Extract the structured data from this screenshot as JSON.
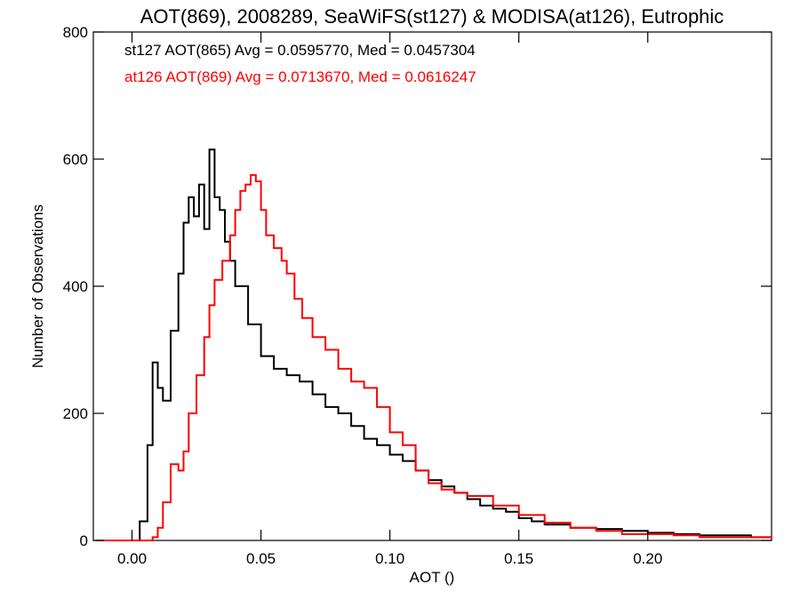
{
  "chart_data": {
    "type": "line",
    "title": "AOT(869), 2008289, SeaWiFS(st127) & MODISA(at126), Eutrophic",
    "xlabel": "AOT ()",
    "ylabel": "Number of Observations",
    "xlim": [
      -0.015,
      0.248
    ],
    "ylim": [
      0,
      800
    ],
    "x_ticks": [
      0.0,
      0.05,
      0.1,
      0.15,
      0.2
    ],
    "x_tick_labels": [
      "0.00",
      "0.05",
      "0.10",
      "0.15",
      "0.20"
    ],
    "y_ticks": [
      0,
      200,
      400,
      600,
      800
    ],
    "y_tick_labels": [
      "0",
      "200",
      "400",
      "600",
      "800"
    ],
    "grid": false,
    "step": true,
    "annotations": [
      {
        "text": "st127 AOT(865) Avg = 0.0595770, Med = 0.0457304",
        "color": "#000000"
      },
      {
        "text": "at126 AOT(869) Avg = 0.0713670, Med = 0.0616247",
        "color": "#ff0000"
      }
    ],
    "series": [
      {
        "color": "#000000",
        "x": [
          -0.014,
          0.0,
          0.003,
          0.006,
          0.008,
          0.01,
          0.012,
          0.015,
          0.018,
          0.02,
          0.022,
          0.024,
          0.026,
          0.028,
          0.03,
          0.032,
          0.034,
          0.036,
          0.038,
          0.04,
          0.045,
          0.05,
          0.055,
          0.06,
          0.065,
          0.07,
          0.075,
          0.08,
          0.085,
          0.09,
          0.095,
          0.1,
          0.105,
          0.11,
          0.115,
          0.12,
          0.125,
          0.13,
          0.135,
          0.14,
          0.145,
          0.15,
          0.155,
          0.16,
          0.17,
          0.18,
          0.19,
          0.2,
          0.21,
          0.22,
          0.23,
          0.24,
          0.248
        ],
        "y": [
          0,
          0,
          30,
          150,
          280,
          240,
          220,
          330,
          420,
          500,
          540,
          510,
          560,
          490,
          615,
          540,
          520,
          470,
          440,
          400,
          340,
          290,
          270,
          260,
          250,
          230,
          210,
          200,
          180,
          160,
          150,
          135,
          125,
          110,
          95,
          85,
          75,
          65,
          55,
          50,
          45,
          35,
          30,
          25,
          20,
          18,
          15,
          12,
          10,
          8,
          8,
          5,
          5
        ]
      },
      {
        "color": "#ff0000",
        "x": [
          -0.014,
          0.0,
          0.005,
          0.008,
          0.01,
          0.012,
          0.015,
          0.018,
          0.02,
          0.022,
          0.025,
          0.028,
          0.03,
          0.032,
          0.035,
          0.038,
          0.04,
          0.042,
          0.044,
          0.046,
          0.048,
          0.05,
          0.052,
          0.055,
          0.058,
          0.06,
          0.063,
          0.066,
          0.07,
          0.075,
          0.08,
          0.085,
          0.09,
          0.095,
          0.1,
          0.105,
          0.11,
          0.115,
          0.12,
          0.125,
          0.13,
          0.14,
          0.15,
          0.16,
          0.17,
          0.18,
          0.19,
          0.2,
          0.21,
          0.22,
          0.23,
          0.24,
          0.248
        ],
        "y": [
          0,
          0,
          0,
          5,
          20,
          60,
          120,
          110,
          140,
          200,
          260,
          320,
          370,
          410,
          440,
          480,
          520,
          550,
          560,
          575,
          565,
          520,
          480,
          460,
          440,
          420,
          380,
          350,
          320,
          300,
          270,
          250,
          240,
          210,
          170,
          150,
          110,
          90,
          80,
          75,
          70,
          55,
          40,
          28,
          20,
          15,
          10,
          10,
          8,
          5,
          5,
          5,
          3
        ]
      }
    ]
  }
}
